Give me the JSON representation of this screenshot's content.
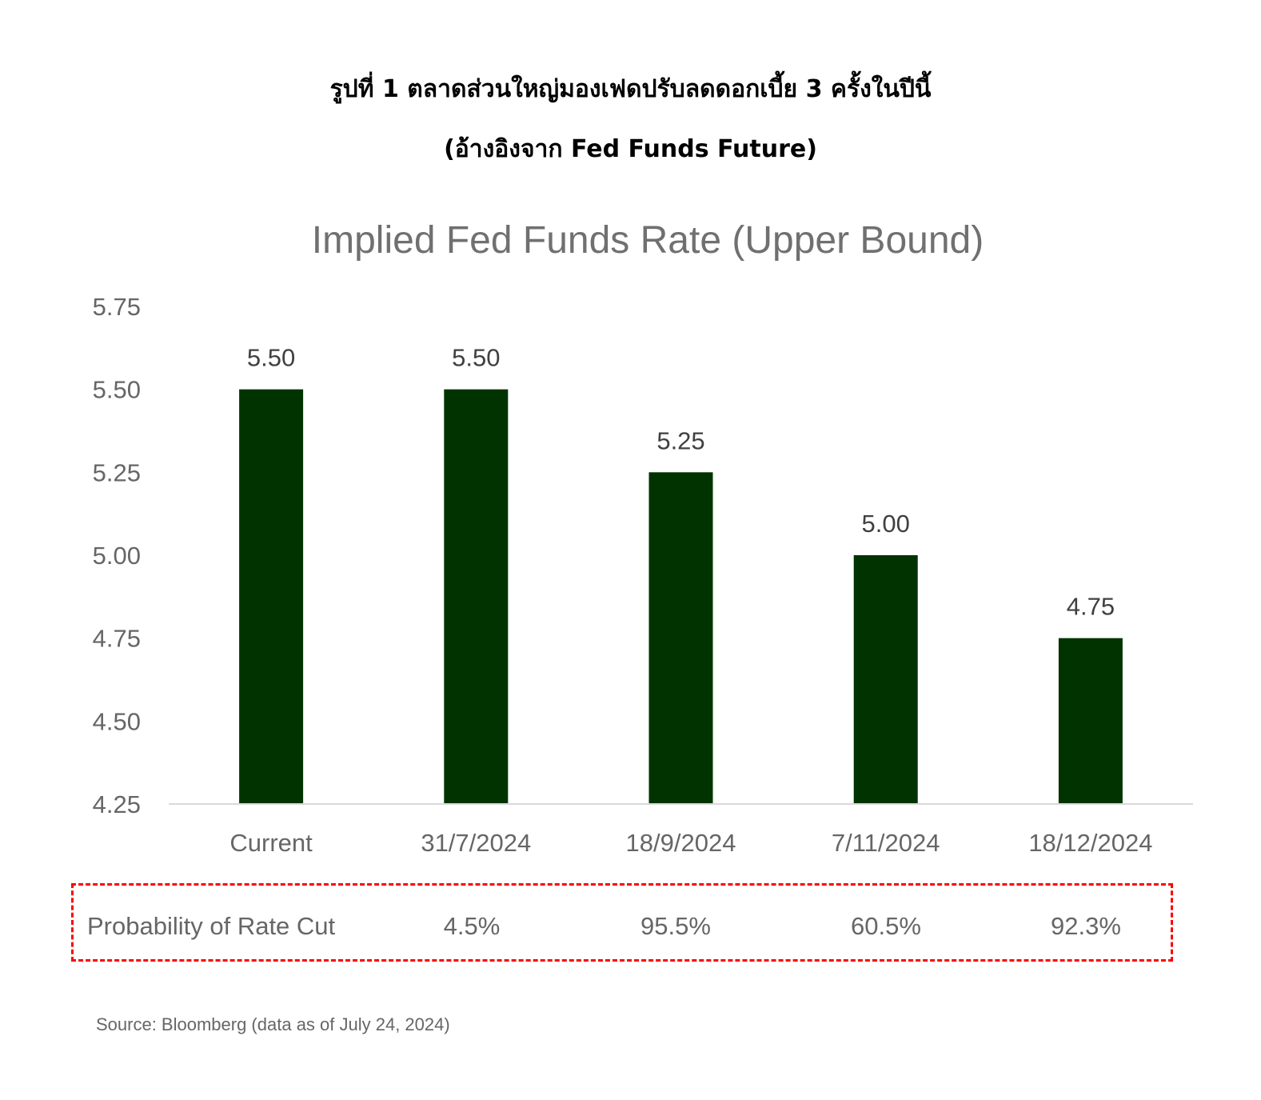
{
  "heading": {
    "line1": "รูปที่ 1 ตลาดส่วนใหญ่มองเฟดปรับลดดอกเบี้ย 3 ครั้งในปีนี้",
    "line2": "(อ้างอิงจาก Fed Funds Future)"
  },
  "chart_data": {
    "type": "bar",
    "title": "Implied Fed Funds Rate (Upper Bound)",
    "xlabel": "",
    "ylabel": "",
    "categories": [
      "Current",
      "31/7/2024",
      "18/9/2024",
      "7/11/2024",
      "18/12/2024"
    ],
    "values": [
      5.5,
      5.5,
      5.25,
      5.0,
      4.75
    ],
    "value_labels": [
      "5.50",
      "5.50",
      "5.25",
      "5.00",
      "4.75"
    ],
    "ylim": [
      4.25,
      5.75
    ],
    "yticks": [
      "4.25",
      "4.50",
      "4.75",
      "5.00",
      "5.25",
      "5.50",
      "5.75"
    ],
    "grid": false,
    "legend": "none",
    "bar_color": "#003300"
  },
  "probability": {
    "label": "Probability of Rate Cut",
    "values": [
      "4.5%",
      "95.5%",
      "60.5%",
      "92.3%"
    ],
    "box_color": "#ff0000"
  },
  "source": "Source: Bloomberg (data as of July 24, 2024)"
}
